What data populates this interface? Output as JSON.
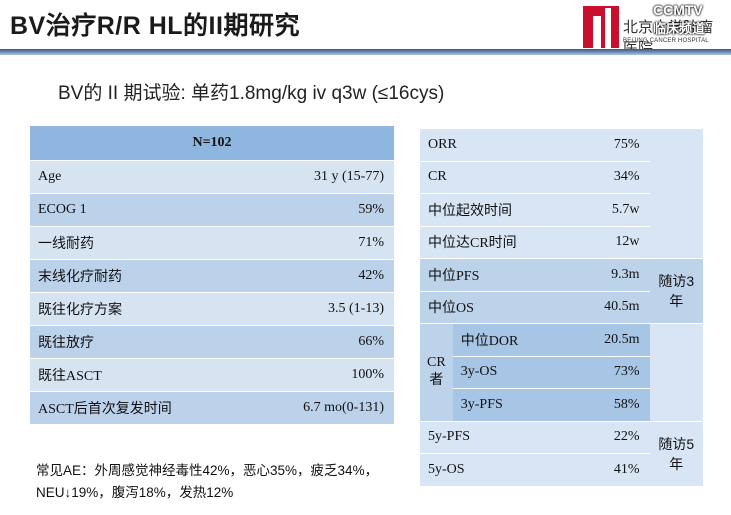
{
  "header": {
    "title": "BV治疗R/R HL的II期研究",
    "subtitle": "BV的 II 期试验: 单药1.8mg/kg iv q3w (≤16cys)"
  },
  "logo": {
    "cn": "北京大学肿瘤医院",
    "en": "BEIJING CANCER HOSPITAL",
    "watermark_top": "CCMTV",
    "watermark_sub": "临床频道"
  },
  "left_table": {
    "header": "N=102",
    "rows": [
      {
        "k": "Age",
        "v": "31 y (15-77)"
      },
      {
        "k": "ECOG 1",
        "v": "59%"
      },
      {
        "k": "一线耐药",
        "v": "71%"
      },
      {
        "k": "末线化疗耐药",
        "v": "42%"
      },
      {
        "k": "既往化疗方案",
        "v": "3.5 (1-13)"
      },
      {
        "k": "既往放疗",
        "v": "66%"
      },
      {
        "k": "既往ASCT",
        "v": "100%"
      },
      {
        "k": "ASCT后首次复发时间",
        "v": "6.7 mo(0-131)"
      }
    ]
  },
  "right_table": {
    "r0": {
      "k": "ORR",
      "v": "75%"
    },
    "r1": {
      "k": "CR",
      "v": "34%"
    },
    "r2": {
      "k": "中位起效时间",
      "v": "5.7w"
    },
    "r3": {
      "k": "中位达CR时间",
      "v": "12w"
    },
    "r4": {
      "k": "中位PFS",
      "v": "9.3m"
    },
    "r5": {
      "k": "中位OS",
      "v": "40.5m"
    },
    "note3": "随访3年",
    "cr_label": "CR者",
    "sub0": {
      "k": "中位DOR",
      "v": "20.5m"
    },
    "sub1": {
      "k": "3y-OS",
      "v": "73%"
    },
    "sub2": {
      "k": "3y-PFS",
      "v": "58%"
    },
    "r9": {
      "k": "5y-PFS",
      "v": "22%"
    },
    "r10": {
      "k": "5y-OS",
      "v": "41%"
    },
    "note5": "随访5年"
  },
  "ae": {
    "line1": "常见AE：外周感觉神经毒性42%，恶心35%，疲乏34%，",
    "line2": "NEU↓19%，腹泻18%，发热12%"
  },
  "colors": {
    "left_header": "#8fb6df",
    "left_row_light": "#d6e3f1",
    "left_row_dark": "#bcd1ea",
    "logo_red": "#c8102e"
  }
}
